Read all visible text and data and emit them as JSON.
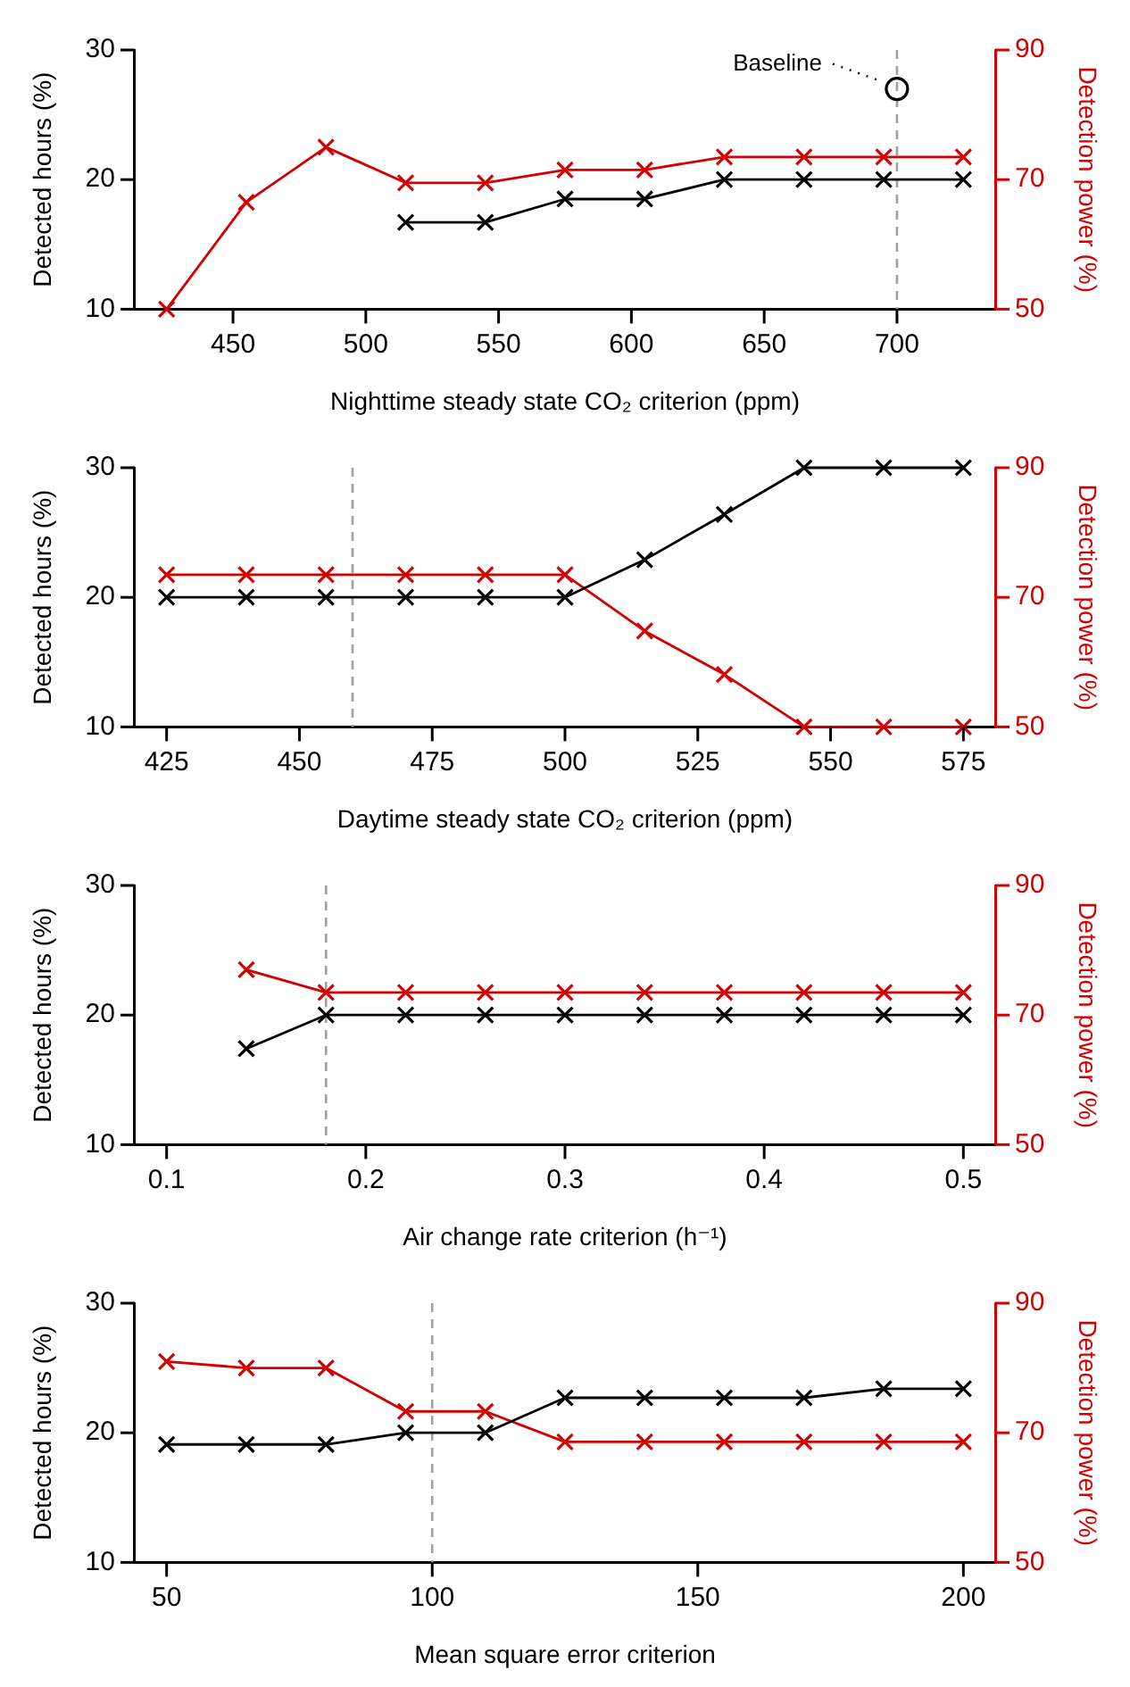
{
  "chart_data": [
    {
      "type": "line",
      "xlabel": "Nighttime steady state CO₂ criterion (ppm)",
      "ylabel": "Detected hours (%)",
      "y2label": "Detection power (%)",
      "x": [
        425,
        455,
        485,
        515,
        545,
        575,
        605,
        635,
        665,
        695,
        725
      ],
      "series": [
        {
          "color": "#000000",
          "values": [
            null,
            null,
            null,
            16.7,
            16.7,
            18.5,
            18.5,
            20,
            20,
            20,
            20
          ]
        },
        {
          "color": "#d40000",
          "axis": "y2",
          "values": [
            50,
            66.5,
            75,
            69.5,
            69.5,
            71.5,
            71.5,
            73.5,
            73.5,
            73.5,
            73.5
          ]
        },
        {
          "type": "scatter",
          "color": "#000000",
          "marker": "circle",
          "x": [
            700
          ],
          "values": [
            27
          ]
        }
      ],
      "annotations": [
        {
          "text": "Baseline",
          "x": 700,
          "y": 27
        }
      ],
      "xlim": [
        413,
        737
      ],
      "xticks": [
        450,
        500,
        550,
        600,
        650,
        700
      ],
      "ylim": [
        10,
        30
      ],
      "yticks": [
        10,
        20,
        30
      ],
      "y2lim": [
        50,
        90
      ],
      "y2ticks": [
        50,
        70,
        90
      ],
      "ref_lines": [
        {
          "axis": "x",
          "value": 700,
          "color": "#a0a0a0",
          "line_style": "dashed"
        }
      ],
      "marker": "cross",
      "grid": false,
      "legend": false
    },
    {
      "type": "line",
      "xlabel": "Daytime steady state CO₂ criterion (ppm)",
      "ylabel": "Detected hours (%)",
      "y2label": "Detection power (%)",
      "x": [
        425,
        440,
        455,
        470,
        485,
        500,
        515,
        530,
        545,
        560,
        575
      ],
      "series": [
        {
          "color": "#000000",
          "values": [
            20,
            20,
            20,
            20,
            20,
            20,
            22.9,
            26.4,
            30,
            30,
            30
          ]
        },
        {
          "color": "#d40000",
          "axis": "y2",
          "values": [
            73.5,
            73.5,
            73.5,
            73.5,
            73.5,
            73.5,
            64.8,
            58.1,
            50,
            50,
            50
          ]
        }
      ],
      "xlim": [
        419,
        581
      ],
      "xticks": [
        425,
        450,
        475,
        500,
        525,
        550,
        575
      ],
      "ylim": [
        10,
        30
      ],
      "yticks": [
        10,
        20,
        30
      ],
      "y2lim": [
        50,
        90
      ],
      "y2ticks": [
        50,
        70,
        90
      ],
      "ref_lines": [
        {
          "axis": "x",
          "value": 460,
          "color": "#a0a0a0",
          "line_style": "dashed"
        }
      ],
      "marker": "cross",
      "grid": false,
      "legend": false
    },
    {
      "type": "line",
      "xlabel": "Air change rate criterion (h⁻¹)",
      "ylabel": "Detected hours (%)",
      "y2label": "Detection power (%)",
      "x": [
        0.14,
        0.18,
        0.22,
        0.26,
        0.3,
        0.34,
        0.38,
        0.42,
        0.46,
        0.5
      ],
      "series": [
        {
          "color": "#000000",
          "values": [
            17.4,
            20,
            20,
            20,
            20,
            20,
            20,
            20,
            20,
            20
          ]
        },
        {
          "color": "#d40000",
          "axis": "y2",
          "values": [
            77,
            73.5,
            73.5,
            73.5,
            73.5,
            73.5,
            73.5,
            73.5,
            73.5,
            73.5
          ]
        }
      ],
      "xlim": [
        0.084,
        0.516
      ],
      "xticks": [
        0.1,
        0.2,
        0.3,
        0.4,
        0.5
      ],
      "ylim": [
        10,
        30
      ],
      "yticks": [
        10,
        20,
        30
      ],
      "y2lim": [
        50,
        90
      ],
      "y2ticks": [
        50,
        70,
        90
      ],
      "ref_lines": [
        {
          "axis": "x",
          "value": 0.18,
          "color": "#a0a0a0",
          "line_style": "dashed"
        }
      ],
      "marker": "cross",
      "grid": false,
      "legend": false
    },
    {
      "type": "line",
      "xlabel": "Mean square error criterion",
      "ylabel": "Detected hours (%)",
      "y2label": "Detection power (%)",
      "x": [
        50,
        65,
        80,
        95,
        110,
        125,
        140,
        155,
        170,
        185,
        200
      ],
      "series": [
        {
          "color": "#000000",
          "values": [
            19.1,
            19.1,
            19.1,
            20,
            20,
            22.7,
            22.7,
            22.7,
            22.7,
            23.4,
            23.4
          ]
        },
        {
          "color": "#d40000",
          "axis": "y2",
          "values": [
            81,
            80,
            80,
            73.3,
            73.3,
            68.6,
            68.6,
            68.6,
            68.6,
            68.6,
            68.6
          ]
        }
      ],
      "xlim": [
        44,
        206
      ],
      "xticks": [
        50,
        100,
        150,
        200
      ],
      "ylim": [
        10,
        30
      ],
      "yticks": [
        10,
        20,
        30
      ],
      "y2lim": [
        50,
        90
      ],
      "y2ticks": [
        50,
        70,
        90
      ],
      "ref_lines": [
        {
          "axis": "x",
          "value": 100,
          "color": "#a0a0a0",
          "line_style": "dashed"
        }
      ],
      "marker": "cross",
      "grid": false,
      "legend": false
    }
  ]
}
